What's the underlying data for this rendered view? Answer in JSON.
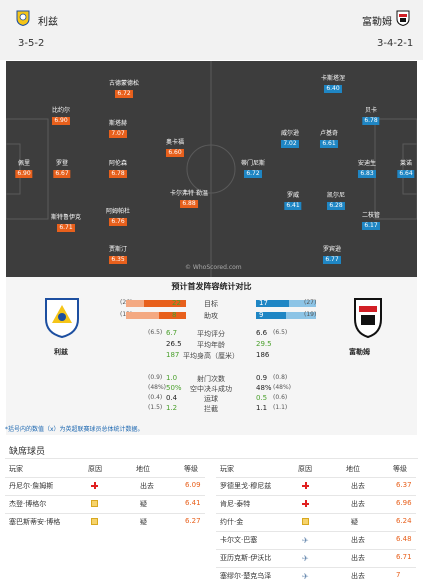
{
  "header": {
    "home": {
      "name": "利兹",
      "formation": "3-5-2"
    },
    "away": {
      "name": "富勒姆",
      "formation": "3-4-2-1"
    }
  },
  "pitch": {
    "home_players": [
      {
        "name": "古德蒙德松",
        "rating": "6.72"
      },
      {
        "name": "比约尔",
        "rating": "6.90"
      },
      {
        "name": "斯塔赫",
        "rating": "7.07"
      },
      {
        "name": "奥卡福",
        "rating": "6.60"
      },
      {
        "name": "佩里",
        "rating": "6.90"
      },
      {
        "name": "罗登",
        "rating": "6.67"
      },
      {
        "name": "阿伦森",
        "rating": "6.78"
      },
      {
        "name": "阿姆帕杜",
        "rating": "6.76"
      },
      {
        "name": "卡尔弗特·勒温",
        "rating": "6.88"
      },
      {
        "name": "斯特鲁伊克",
        "rating": "6.71"
      },
      {
        "name": "贾斯汀",
        "rating": "6.35"
      }
    ],
    "away_players": [
      {
        "name": "卡斯塔涅",
        "rating": "6.40"
      },
      {
        "name": "贝卡",
        "rating": "6.78"
      },
      {
        "name": "威尔逊",
        "rating": "7.02"
      },
      {
        "name": "卢基奇",
        "rating": "6.61"
      },
      {
        "name": "蒂门尼斯",
        "rating": "6.72"
      },
      {
        "name": "安迪生",
        "rating": "6.83"
      },
      {
        "name": "莱诺",
        "rating": "6.64"
      },
      {
        "name": "罗威",
        "rating": "6.41"
      },
      {
        "name": "凯尔尼",
        "rating": "6.28"
      },
      {
        "name": "二枝管",
        "rating": "6.17"
      },
      {
        "name": "罗宾逊",
        "rating": "6.77"
      }
    ],
    "watermark": "© WhoScored.com"
  },
  "stats": {
    "title": "预计首发阵容统计对比",
    "home_team": "利兹",
    "away_team": "富勒姆",
    "bars": [
      {
        "label": "目标",
        "home_avg": "(26)",
        "home": "22",
        "away": "17",
        "away_avg": "(27)",
        "home_pct": 0.7,
        "away_pct": 0.55
      },
      {
        "label": "助攻",
        "home_avg": "(13)",
        "home": "8",
        "away": "9",
        "away_avg": "(19)",
        "home_pct": 0.45,
        "away_pct": 0.5
      }
    ],
    "rows": [
      {
        "label": "平均评分",
        "home_avg": "(6.5)",
        "home": "6.7",
        "home_hl": true,
        "away": "6.6",
        "away_avg": "(6.5)",
        "away_hl": false
      },
      {
        "label": "平均年龄",
        "home_avg": "",
        "home": "26.5",
        "home_hl": false,
        "away": "29.5",
        "away_avg": "",
        "away_hl": true
      },
      {
        "label": "平均身高（厘米）",
        "home_avg": "",
        "home": "187",
        "home_hl": true,
        "away": "186",
        "away_avg": "",
        "away_hl": false
      }
    ],
    "rows2": [
      {
        "label": "射门次数",
        "home_avg": "(0.9)",
        "home": "1.0",
        "home_hl": true,
        "away": "0.9",
        "away_avg": "(0.8)",
        "away_hl": false
      },
      {
        "label": "空中决斗成功",
        "home_avg": "(48%)",
        "home": "50%",
        "home_hl": true,
        "away": "48%",
        "away_avg": "(48%)",
        "away_hl": false
      },
      {
        "label": "运球",
        "home_avg": "(0.4)",
        "home": "0.4",
        "home_hl": false,
        "away": "0.5",
        "away_avg": "(0.6)",
        "away_hl": true
      },
      {
        "label": "拦截",
        "home_avg": "(1.5)",
        "home": "1.2",
        "home_hl": true,
        "away": "1.1",
        "away_avg": "(1.1)",
        "away_hl": false
      }
    ],
    "note": "*括号内的数值（x）为英超联赛球员总体统计数据。"
  },
  "absent": {
    "title": "缺席球员",
    "headers": {
      "player": "玩家",
      "reason": "原因",
      "position": "地位",
      "level": "等级"
    },
    "home": [
      {
        "player": "丹尼尔·詹姆斯",
        "reason": "injury",
        "position": "出去",
        "level": "6.09"
      },
      {
        "player": "杰登·博格尔",
        "reason": "doubt",
        "position": "疑",
        "level": "6.41"
      },
      {
        "player": "塞巴斯蒂安·博格",
        "reason": "doubt",
        "position": "疑",
        "level": "6.27"
      }
    ],
    "away": [
      {
        "player": "罗德里戈·穆尼兹",
        "reason": "injury",
        "position": "出去",
        "level": "6.37"
      },
      {
        "player": "肯尼·泰特",
        "reason": "injury",
        "position": "出去",
        "level": "6.96"
      },
      {
        "player": "约什·金",
        "reason": "doubt",
        "position": "疑",
        "level": "6.24"
      },
      {
        "player": "卡尔文·巴塞",
        "reason": "intl",
        "position": "出去",
        "level": "6.48"
      },
      {
        "player": "亚历克斯·伊沃比",
        "reason": "intl",
        "position": "出去",
        "level": "6.71"
      },
      {
        "player": "塞缪尔·楚克乌泽",
        "reason": "intl",
        "position": "出去",
        "level": "7"
      }
    ]
  }
}
